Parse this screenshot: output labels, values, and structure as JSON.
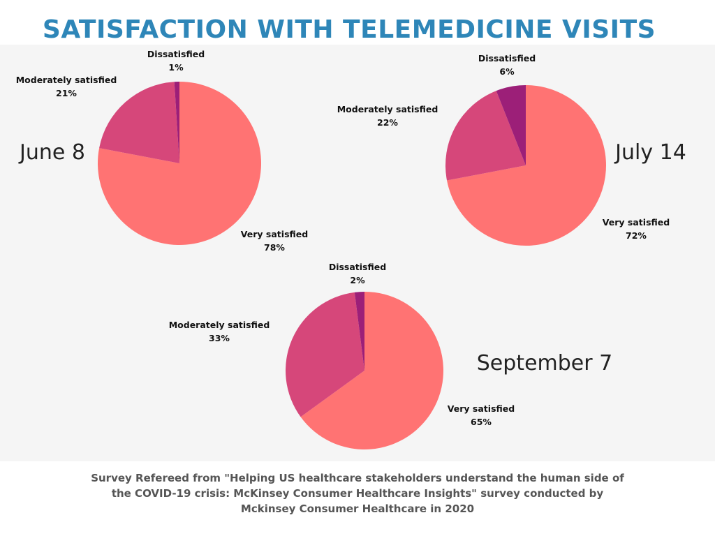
{
  "title": "SATISFACTION WITH TELEMEDICINE VISITS",
  "caption": "Survey Refereed from \"Helping US healthcare stakeholders understand the human side of the COVID-19 crisis: McKinsey Consumer Healthcare Insights\" survey conducted by Mckinsey Consumer Healthcare in 2020",
  "colors": {
    "title": "#2e86b8",
    "very_satisfied": "#ff7373",
    "moderately_satisfied": "#d6477a",
    "dissatisfied": "#9c1f78",
    "panel_background": "#f5f5f5"
  },
  "chart_data": [
    {
      "type": "pie",
      "title": "June 8",
      "categories": [
        "Very satisfied",
        "Moderately satisfied",
        "Dissatisfied"
      ],
      "values": [
        78,
        21,
        1
      ],
      "labels": [
        "78%",
        "21%",
        "1%"
      ]
    },
    {
      "type": "pie",
      "title": "July 14",
      "categories": [
        "Very satisfied",
        "Moderately satisfied",
        "Dissatisfied"
      ],
      "values": [
        72,
        22,
        6
      ],
      "labels": [
        "72%",
        "22%",
        "6%"
      ]
    },
    {
      "type": "pie",
      "title": "September 7",
      "categories": [
        "Very satisfied",
        "Moderately satisfied",
        "Dissatisfied"
      ],
      "values": [
        65,
        33,
        2
      ],
      "labels": [
        "65%",
        "33%",
        "2%"
      ]
    }
  ]
}
